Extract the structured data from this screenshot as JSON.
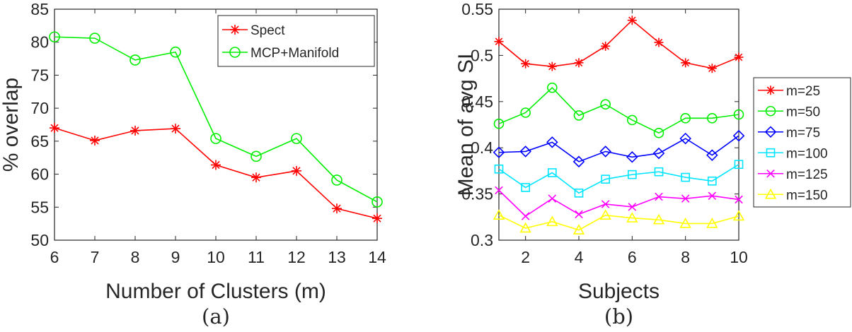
{
  "chart_data": [
    {
      "type": "line",
      "caption": "(a)",
      "xlabel": "Number of Clusters (m)",
      "ylabel": "% overlap",
      "xlim": [
        6,
        14
      ],
      "ylim": [
        50,
        85
      ],
      "xticks": [
        "6",
        "7",
        "8",
        "9",
        "10",
        "11",
        "12",
        "13",
        "14"
      ],
      "yticks": [
        "50",
        "55",
        "60",
        "65",
        "70",
        "75",
        "80",
        "85"
      ],
      "x": [
        6,
        7,
        8,
        9,
        10,
        11,
        12,
        13,
        14
      ],
      "legend_position": "top-right",
      "series": [
        {
          "name": "Spect",
          "color": "#ff0000",
          "marker": "asterisk",
          "values": [
            67.0,
            65.1,
            66.6,
            66.9,
            61.4,
            59.5,
            60.5,
            54.8,
            53.3
          ]
        },
        {
          "name": "MCP+Manifold",
          "color": "#00ee00",
          "marker": "circle",
          "values": [
            80.8,
            80.6,
            77.3,
            78.5,
            65.4,
            62.7,
            65.4,
            59.1,
            55.8
          ]
        }
      ]
    },
    {
      "type": "line",
      "caption": "(b)",
      "xlabel": "Subjects",
      "ylabel": "Mean of avg SI",
      "xlim": [
        1,
        10
      ],
      "ylim": [
        0.3,
        0.55
      ],
      "xticks": [
        "2",
        "4",
        "6",
        "8",
        "10"
      ],
      "yticks": [
        "0.3",
        "0.35",
        "0.4",
        "0.45",
        "0.5",
        "0.55"
      ],
      "x": [
        1,
        2,
        3,
        4,
        5,
        6,
        7,
        8,
        9,
        10
      ],
      "legend_position": "outside-right",
      "series": [
        {
          "name": "m=25",
          "color": "#ff0000",
          "marker": "asterisk",
          "values": [
            0.515,
            0.491,
            0.488,
            0.492,
            0.51,
            0.538,
            0.514,
            0.492,
            0.486,
            0.498
          ]
        },
        {
          "name": "m=50",
          "color": "#00ee00",
          "marker": "circle",
          "values": [
            0.426,
            0.438,
            0.465,
            0.435,
            0.447,
            0.43,
            0.416,
            0.432,
            0.432,
            0.436
          ]
        },
        {
          "name": "m=75",
          "color": "#0000ff",
          "marker": "diamond",
          "values": [
            0.395,
            0.396,
            0.406,
            0.385,
            0.396,
            0.39,
            0.394,
            0.41,
            0.392,
            0.413
          ]
        },
        {
          "name": "m=100",
          "color": "#00e5ff",
          "marker": "square",
          "values": [
            0.377,
            0.357,
            0.373,
            0.351,
            0.366,
            0.371,
            0.374,
            0.368,
            0.364,
            0.382
          ]
        },
        {
          "name": "m=125",
          "color": "#ff00ff",
          "marker": "x",
          "values": [
            0.354,
            0.326,
            0.345,
            0.328,
            0.339,
            0.336,
            0.347,
            0.345,
            0.348,
            0.344
          ]
        },
        {
          "name": "m=150",
          "color": "#ffff00",
          "marker": "triangle",
          "values": [
            0.327,
            0.313,
            0.32,
            0.311,
            0.327,
            0.324,
            0.322,
            0.318,
            0.318,
            0.326
          ]
        }
      ]
    }
  ]
}
